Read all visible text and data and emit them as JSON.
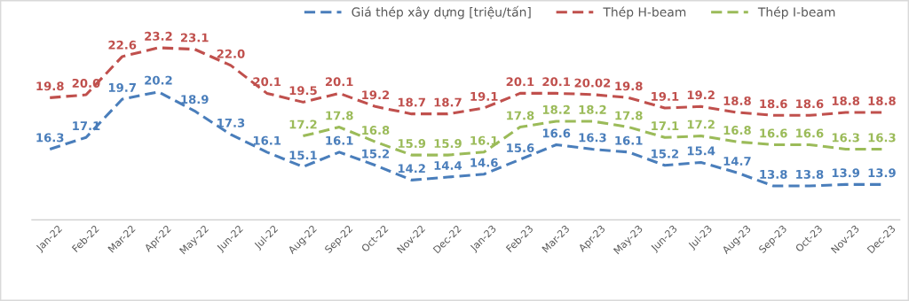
{
  "chart_data": {
    "type": "line",
    "categories": [
      "Jan-22",
      "Feb-22",
      "Mar-22",
      "Apr-22",
      "May-22",
      "Jun-22",
      "Jul-22",
      "Aug-22",
      "Sep-22",
      "Oct-22",
      "Nov-22",
      "Dec-22",
      "Jan-23",
      "Feb-23",
      "Mar-23",
      "Apr-23",
      "May-23",
      "Jun-23",
      "Jul-23",
      "Aug-23",
      "Sep-23",
      "Oct-23",
      "Nov-23",
      "Dec-23"
    ],
    "series": [
      {
        "name": "Giá thép xây dựng [triệu/tấn]",
        "color": "#4a7ebb",
        "values": [
          16.3,
          17.1,
          19.7,
          20.2,
          18.9,
          17.3,
          16.1,
          15.1,
          16.1,
          15.2,
          14.2,
          14.4,
          14.6,
          15.6,
          16.6,
          16.3,
          16.1,
          15.2,
          15.4,
          14.7,
          13.8,
          13.8,
          13.9,
          13.9
        ],
        "value_labels": [
          "16.3",
          "17.1",
          "19.7",
          "20.2",
          "18.9",
          "17.3",
          "16.1",
          "15.1",
          "16.1",
          "15.2",
          "14.2",
          "14.4",
          "14.6",
          "15.6",
          "16.6",
          "16.3",
          "16.1",
          "15.2",
          "15.4",
          "14.7",
          "13.8",
          "13.8",
          "13.9",
          "13.9"
        ]
      },
      {
        "name": "Thép H-beam",
        "color": "#c0504d",
        "values": [
          19.8,
          20.0,
          22.6,
          23.2,
          23.1,
          22.0,
          20.1,
          19.5,
          20.1,
          19.2,
          18.7,
          18.7,
          19.1,
          20.1,
          20.1,
          20.02,
          19.8,
          19.1,
          19.2,
          18.8,
          18.6,
          18.6,
          18.8,
          18.8
        ],
        "value_labels": [
          "19.8",
          "20.0",
          "22.6",
          "23.2",
          "23.1",
          "22.0",
          "20.1",
          "19.5",
          "20.1",
          "19.2",
          "18.7",
          "18.7",
          "19.1",
          "20.1",
          "20.1",
          "20.02",
          "19.8",
          "19.1",
          "19.2",
          "18.8",
          "18.6",
          "18.6",
          "18.8",
          "18.8"
        ]
      },
      {
        "name": "Thép I-beam",
        "color": "#9bbb59",
        "values": [
          null,
          null,
          null,
          null,
          null,
          null,
          null,
          17.2,
          17.8,
          16.8,
          15.9,
          15.9,
          16.1,
          17.8,
          18.2,
          18.2,
          17.8,
          17.1,
          17.2,
          16.8,
          16.6,
          16.6,
          16.3,
          16.3
        ],
        "value_labels": [
          null,
          null,
          null,
          null,
          null,
          null,
          null,
          "17.2",
          "17.8",
          "16.8",
          "15.9",
          "15.9",
          "16.1",
          "17.8",
          "18.2",
          "18.2",
          "17.8",
          "17.1",
          "17.2",
          "16.8",
          "16.6",
          "16.6",
          "16.3",
          "16.3"
        ]
      }
    ],
    "legend": "top",
    "line_style": "dashed",
    "marker": "none",
    "grid": false,
    "tick_labels": "x"
  }
}
